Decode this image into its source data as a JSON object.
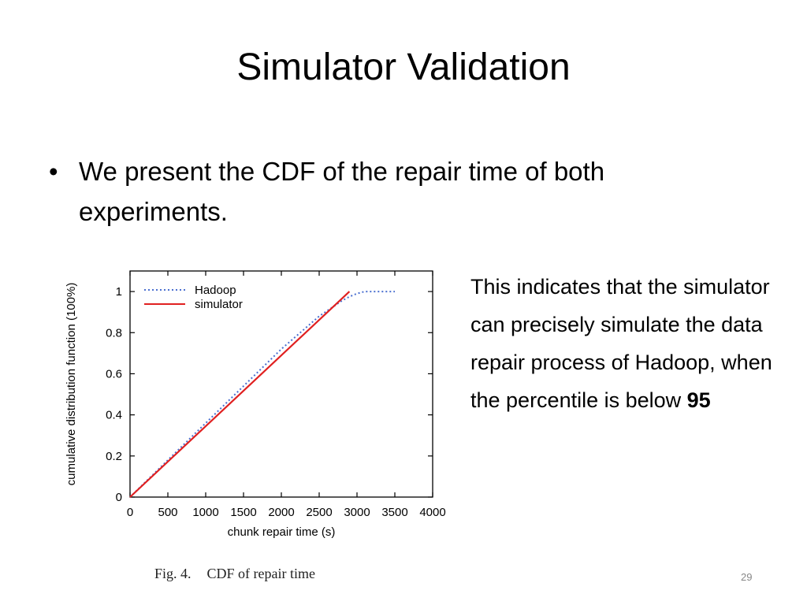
{
  "slide": {
    "title": "Simulator Validation",
    "bullet_symbol": "•",
    "bullet_text": "We present the CDF of the repair time of both experiments.",
    "note_prefix": "This indicates that the simulator can precisely simulate the data repair process of Hadoop, when the percentile is below ",
    "note_bold": "95",
    "figure_label": "Fig. 4.",
    "figure_caption": "CDF of repair time",
    "page_number": "29"
  },
  "chart_data": {
    "type": "line",
    "xlabel": "chunk repair time (s)",
    "ylabel": "cumulative distribution function (100%)",
    "xlim": [
      0,
      4000
    ],
    "ylim": [
      0,
      1.1
    ],
    "xticks": [
      0,
      500,
      1000,
      1500,
      2000,
      2500,
      3000,
      3500,
      4000
    ],
    "yticks": [
      0,
      0.2,
      0.4,
      0.6,
      0.8,
      1
    ],
    "ytick_labels": [
      "0",
      "0.2",
      "0.4",
      "0.6",
      "0.8",
      "1"
    ],
    "grid": false,
    "legend_position": "top-left",
    "series": [
      {
        "name": "Hadoop",
        "style": "dotted",
        "color": "#4a6fd0",
        "x": [
          0,
          500,
          1000,
          1500,
          2000,
          2500,
          2700,
          2800,
          2900,
          3000,
          3100,
          3200,
          3500
        ],
        "y": [
          0,
          0.18,
          0.36,
          0.54,
          0.72,
          0.88,
          0.93,
          0.955,
          0.975,
          0.99,
          1,
          1,
          1
        ]
      },
      {
        "name": "simulator",
        "style": "solid",
        "color": "#e02020",
        "x": [
          0,
          2900
        ],
        "y": [
          0,
          1
        ]
      }
    ]
  }
}
